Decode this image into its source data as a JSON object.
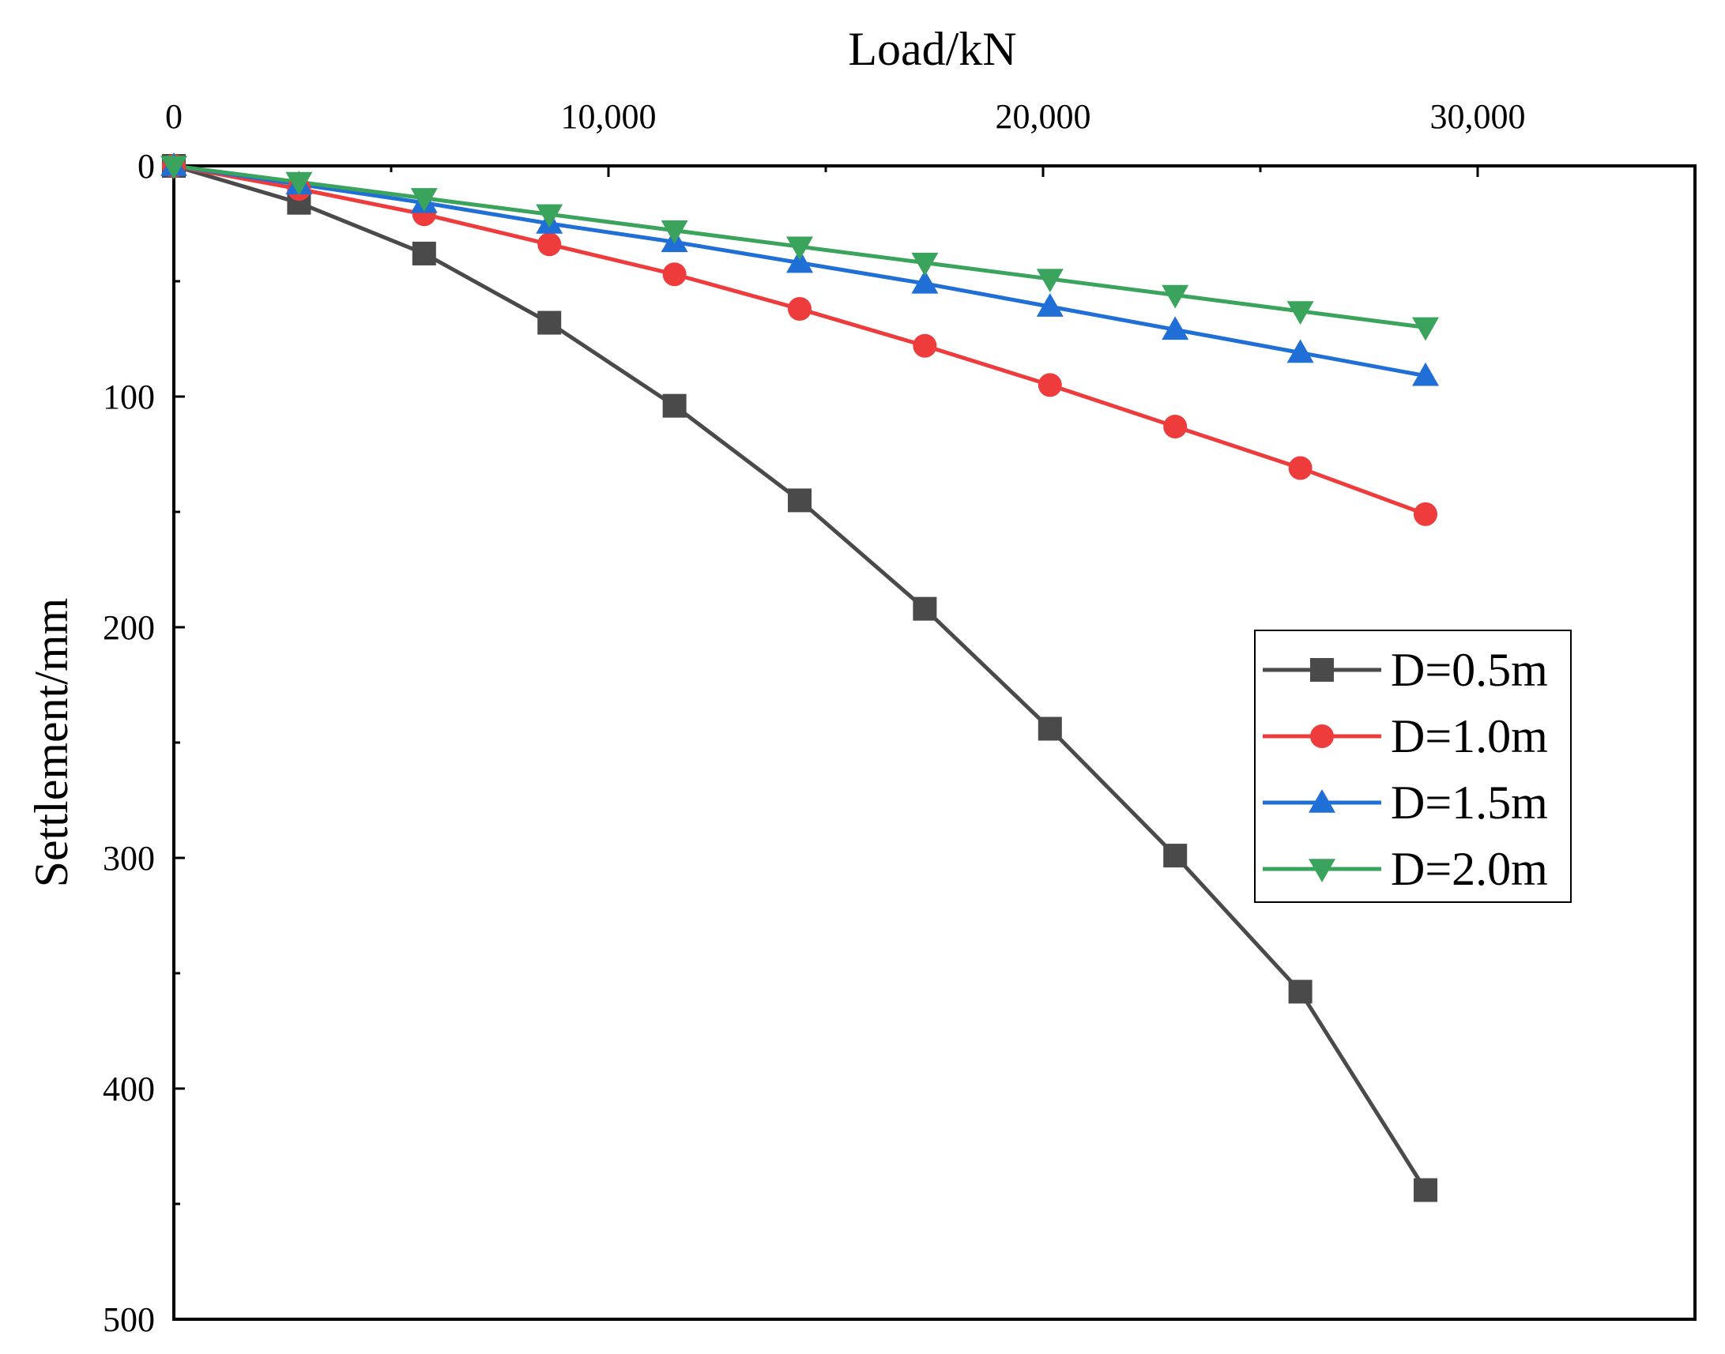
{
  "chart_data": {
    "type": "line",
    "xlabel": "Load/kN",
    "ylabel": "Settlement/mm",
    "x_axis_position": "top",
    "y_axis_inverted": true,
    "xlim": [
      0,
      35000
    ],
    "ylim": [
      0,
      500
    ],
    "x_ticks": [
      0,
      10000,
      20000,
      30000
    ],
    "x_tick_labels": [
      "0",
      "10,000",
      "20,000",
      "30,000"
    ],
    "x_minor_ticks": [
      5000,
      15000,
      25000,
      35000
    ],
    "y_ticks": [
      0,
      100,
      200,
      300,
      400,
      500
    ],
    "y_tick_labels": [
      "0",
      "100",
      "200",
      "300",
      "400",
      "500"
    ],
    "y_minor_ticks": [
      50,
      150,
      250,
      350,
      450
    ],
    "grid": false,
    "legend_position": "right-middle",
    "x": [
      0,
      2880,
      5760,
      8640,
      11520,
      14400,
      17280,
      20160,
      23040,
      25920,
      28800
    ],
    "series": [
      {
        "name": "D=0.5m",
        "color": "#4a4a4a",
        "marker": "square",
        "values": [
          0,
          16,
          38,
          68,
          104,
          145,
          192,
          244,
          299,
          358,
          444
        ]
      },
      {
        "name": "D=1.0m",
        "color": "#ee3b3b",
        "marker": "circle",
        "values": [
          0,
          10,
          21,
          34,
          47,
          62,
          78,
          95,
          113,
          131,
          151
        ]
      },
      {
        "name": "D=1.5m",
        "color": "#1f6fd6",
        "marker": "triangle-up",
        "values": [
          0,
          8,
          16,
          25,
          33,
          42,
          51,
          61,
          71,
          81,
          91
        ]
      },
      {
        "name": "D=2.0m",
        "color": "#3aa35c",
        "marker": "triangle-down",
        "values": [
          0,
          7,
          14,
          21,
          28,
          35,
          42,
          49,
          56,
          63,
          70
        ]
      }
    ]
  }
}
